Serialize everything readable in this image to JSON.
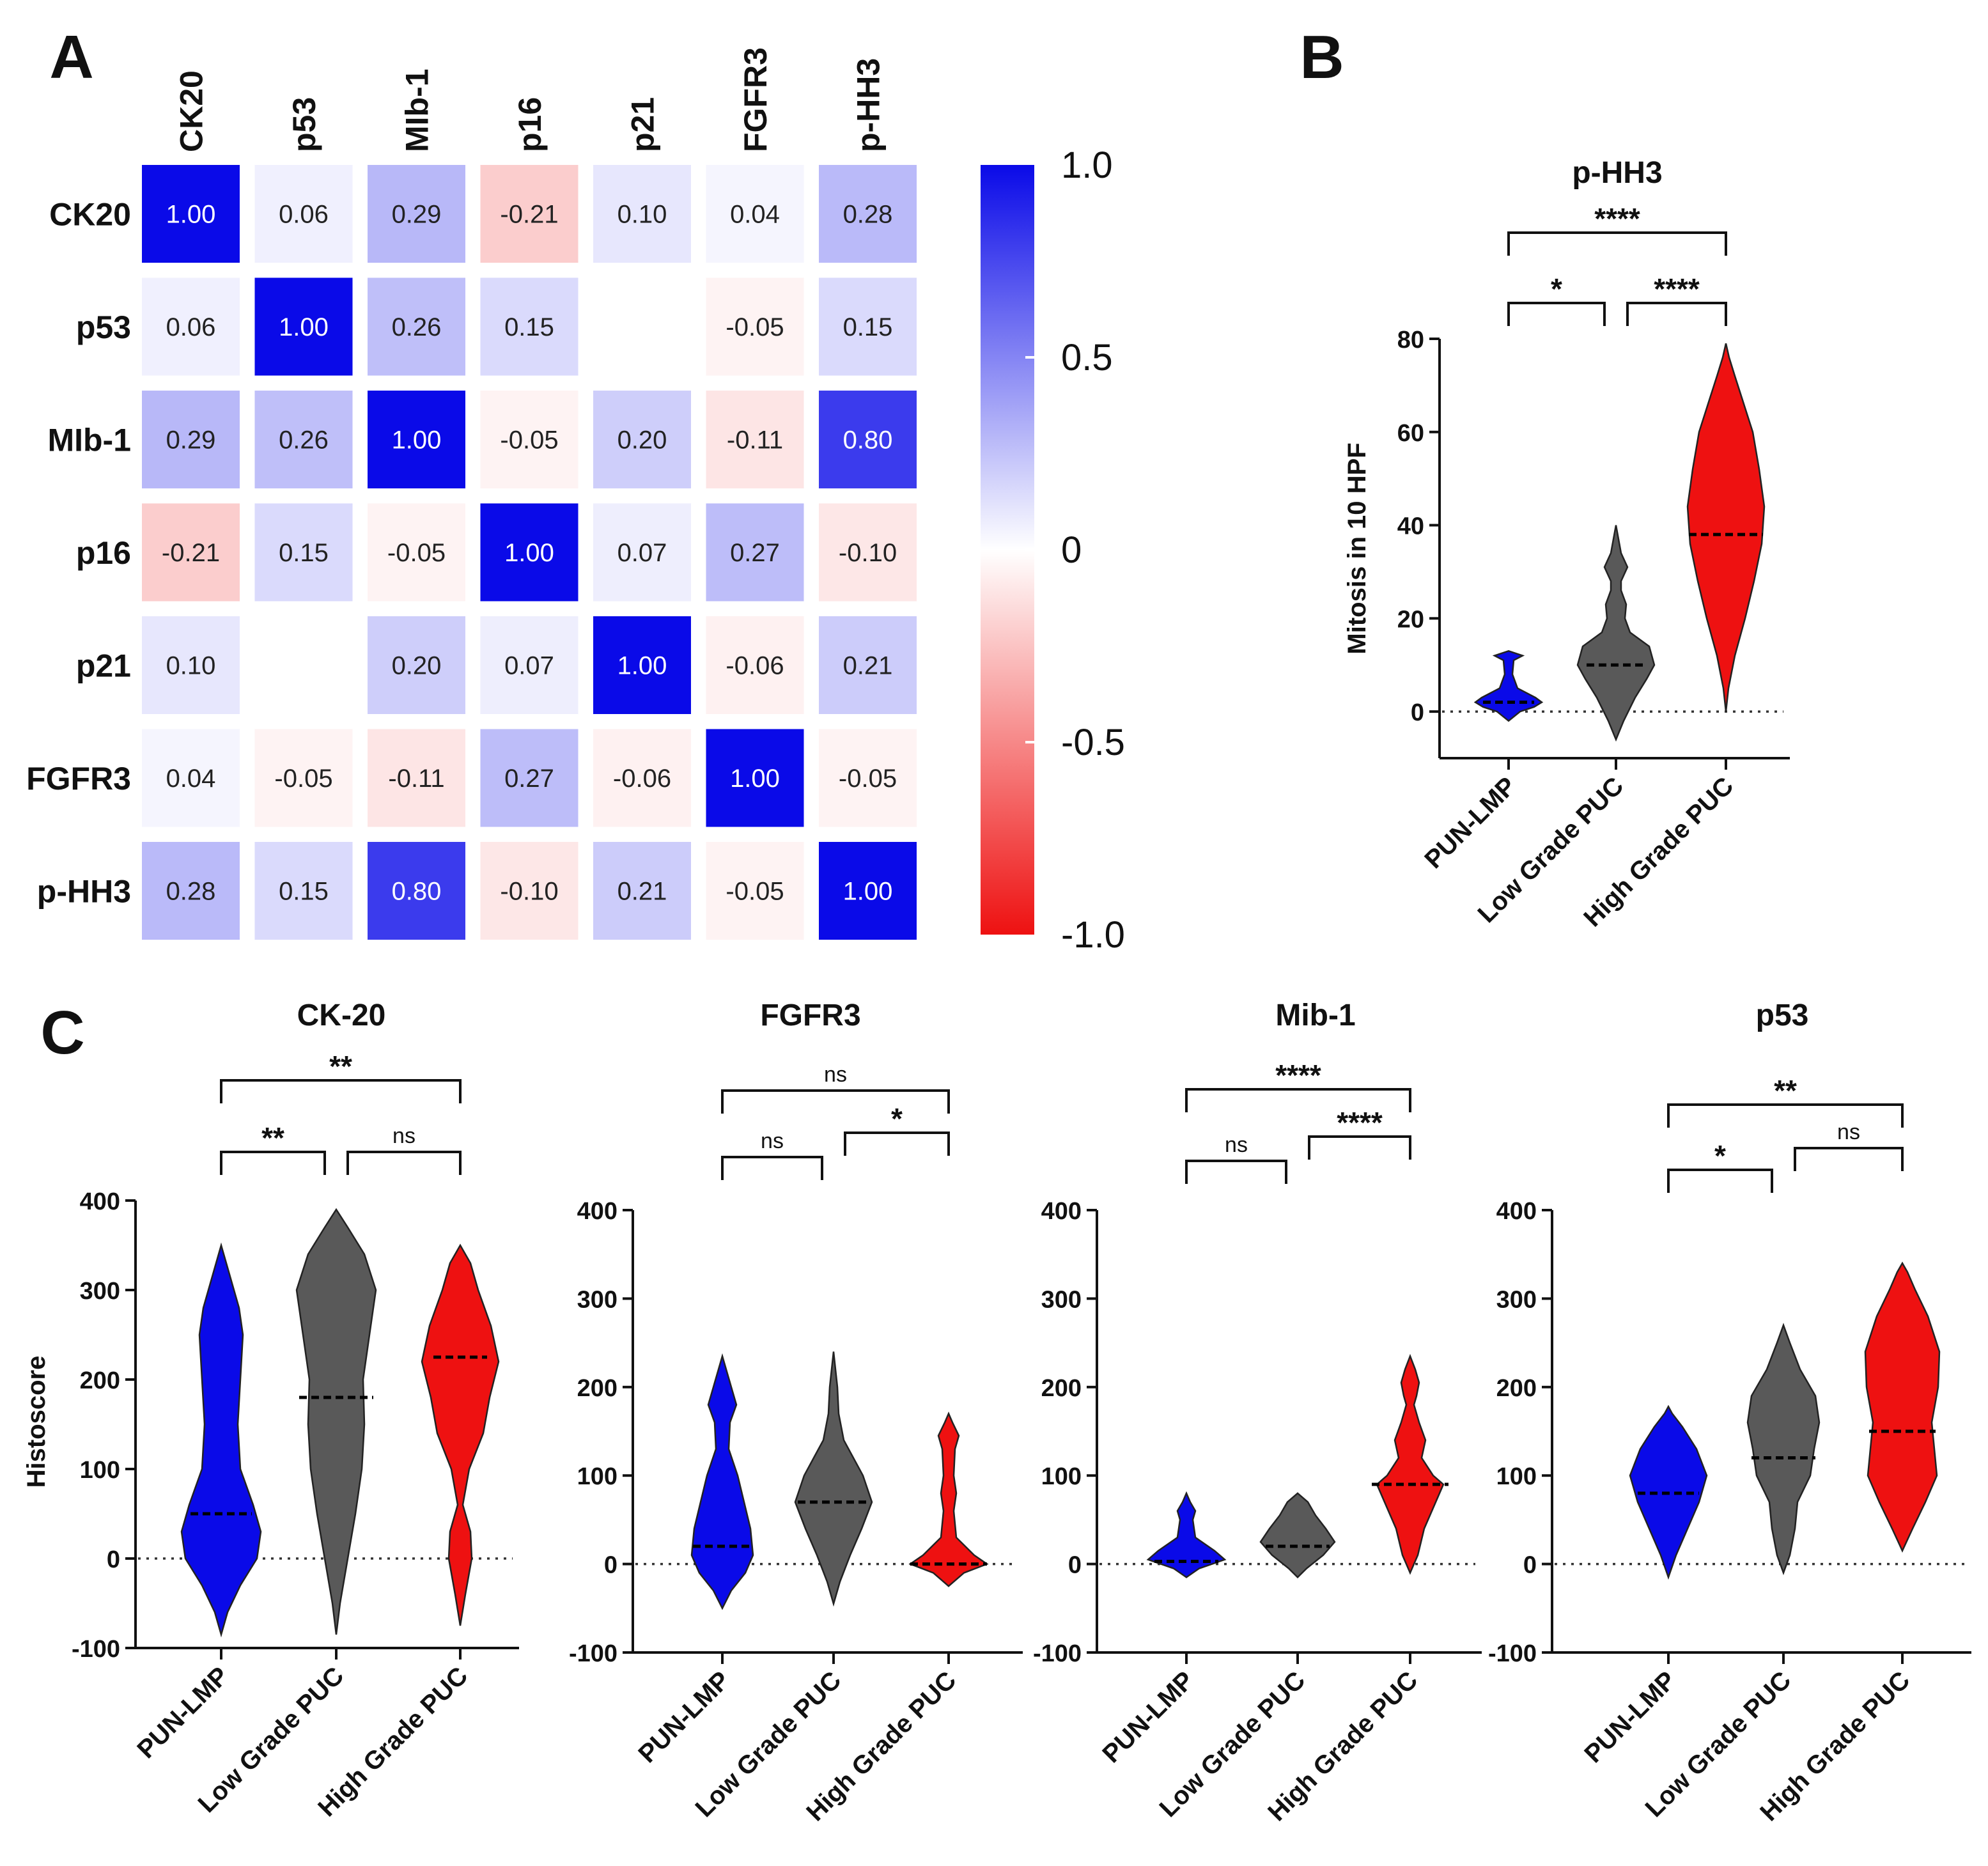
{
  "panels": {
    "a": "A",
    "b": "B",
    "c": "C"
  },
  "groups": [
    "PUN-LMP",
    "Low Grade PUC",
    "High Grade PUC"
  ],
  "colors": {
    "blue": "#0a0ae8",
    "gray": "#595959",
    "red": "#ee1111"
  },
  "chart_data": [
    {
      "type": "heatmap",
      "panel": "A",
      "rows": [
        "CK20",
        "p53",
        "MIb-1",
        "p16",
        "p21",
        "FGFR3",
        "p-HH3"
      ],
      "columns": [
        "CK20",
        "p53",
        "MIb-1",
        "p16",
        "p21",
        "FGFR3",
        "p-HH3"
      ],
      "values": [
        [
          1.0,
          0.06,
          0.29,
          -0.21,
          0.1,
          0.04,
          0.28
        ],
        [
          0.06,
          1.0,
          0.26,
          0.15,
          null,
          -0.05,
          0.15
        ],
        [
          0.29,
          0.26,
          1.0,
          -0.05,
          0.2,
          -0.11,
          0.8
        ],
        [
          -0.21,
          0.15,
          -0.05,
          1.0,
          0.07,
          0.27,
          -0.1
        ],
        [
          0.1,
          null,
          0.2,
          0.07,
          1.0,
          -0.06,
          0.21
        ],
        [
          0.04,
          -0.05,
          -0.11,
          0.27,
          -0.06,
          1.0,
          -0.05
        ],
        [
          0.28,
          0.15,
          0.8,
          -0.1,
          0.21,
          -0.05,
          1.0
        ]
      ],
      "labels": [
        [
          "1.00",
          "0.06",
          "0.29",
          "-0.21",
          "0.10",
          "0.04",
          "0.28"
        ],
        [
          "0.06",
          "1.00",
          "0.26",
          "0.15",
          "",
          "-0.05",
          "0.15"
        ],
        [
          "0.29",
          "0.26",
          "1.00",
          "-0.05",
          "0.20",
          "-0.11",
          "0.80"
        ],
        [
          "-0.21",
          "0.15",
          "-0.05",
          "1.00",
          "0.07",
          "0.27",
          "-0.10"
        ],
        [
          "0.10",
          "",
          "0.20",
          "0.07",
          "1.00",
          "-0.06",
          "0.21"
        ],
        [
          "0.04",
          "-0.05",
          "-0.11",
          "0.27",
          "-0.06",
          "1.00",
          "-0.05"
        ],
        [
          "0.28",
          "0.15",
          "0.80",
          "-0.10",
          "0.21",
          "-0.05",
          "1.00"
        ]
      ],
      "colorbar": {
        "range": [
          -1.0,
          1.0
        ],
        "ticks": [
          "1.0",
          "0.5",
          "0",
          "-0.5",
          "-1.0"
        ]
      }
    },
    {
      "type": "violin",
      "panel": "B",
      "title": "p-HH3",
      "ylabel": "Mitosis in 10 HPF",
      "ylim": [
        -10,
        80
      ],
      "yticks": [
        "80",
        "60",
        "40",
        "20",
        "0"
      ],
      "categories": [
        "PUN-LMP",
        "Low Grade PUC",
        "High Grade PUC"
      ],
      "medians": [
        2,
        10,
        38
      ],
      "significance": [
        {
          "groups": "PUN-LMP vs High Grade PUC",
          "label": "****"
        },
        {
          "groups": "PUN-LMP vs Low Grade PUC",
          "label": "*"
        },
        {
          "groups": "Low Grade PUC vs High Grade PUC",
          "label": "****"
        }
      ]
    },
    {
      "type": "violin",
      "panel": "C",
      "title": "CK-20",
      "ylabel": "Histoscore",
      "ylim": [
        -100,
        400
      ],
      "yticks": [
        "400",
        "300",
        "200",
        "100",
        "0",
        "-100"
      ],
      "categories": [
        "PUN-LMP",
        "Low Grade PUC",
        "High Grade PUC"
      ],
      "medians": [
        50,
        180,
        225
      ],
      "significance": [
        {
          "groups": "PUN-LMP vs High Grade PUC",
          "label": "**"
        },
        {
          "groups": "PUN-LMP vs Low Grade PUC",
          "label": "**"
        },
        {
          "groups": "Low Grade PUC vs High Grade PUC",
          "label": "ns"
        }
      ]
    },
    {
      "type": "violin",
      "panel": "C",
      "title": "FGFR3",
      "ylim": [
        -100,
        400
      ],
      "yticks": [
        "400",
        "300",
        "200",
        "100",
        "0",
        "-100"
      ],
      "categories": [
        "PUN-LMP",
        "Low Grade PUC",
        "High Grade PUC"
      ],
      "medians": [
        20,
        70,
        0
      ],
      "significance": [
        {
          "groups": "PUN-LMP vs High Grade PUC",
          "label": "ns"
        },
        {
          "groups": "PUN-LMP vs Low Grade PUC",
          "label": "ns"
        },
        {
          "groups": "Low Grade PUC vs High Grade PUC",
          "label": "*"
        }
      ]
    },
    {
      "type": "violin",
      "panel": "C",
      "title": "Mib-1",
      "ylim": [
        -100,
        400
      ],
      "yticks": [
        "400",
        "300",
        "200",
        "100",
        "0",
        "-100"
      ],
      "categories": [
        "PUN-LMP",
        "Low Grade PUC",
        "High Grade PUC"
      ],
      "medians": [
        3,
        20,
        90
      ],
      "significance": [
        {
          "groups": "PUN-LMP vs High Grade PUC",
          "label": "****"
        },
        {
          "groups": "PUN-LMP vs Low Grade PUC",
          "label": "ns"
        },
        {
          "groups": "Low Grade PUC vs High Grade PUC",
          "label": "****"
        }
      ]
    },
    {
      "type": "violin",
      "panel": "C",
      "title": "p53",
      "ylim": [
        -100,
        400
      ],
      "yticks": [
        "400",
        "300",
        "200",
        "100",
        "0",
        "-100"
      ],
      "categories": [
        "PUN-LMP",
        "Low Grade PUC",
        "High Grade PUC"
      ],
      "medians": [
        80,
        120,
        150
      ],
      "significance": [
        {
          "groups": "PUN-LMP vs High Grade PUC",
          "label": "**"
        },
        {
          "groups": "PUN-LMP vs Low Grade PUC",
          "label": "*"
        },
        {
          "groups": "Low Grade PUC vs High Grade PUC",
          "label": "ns"
        }
      ]
    }
  ]
}
